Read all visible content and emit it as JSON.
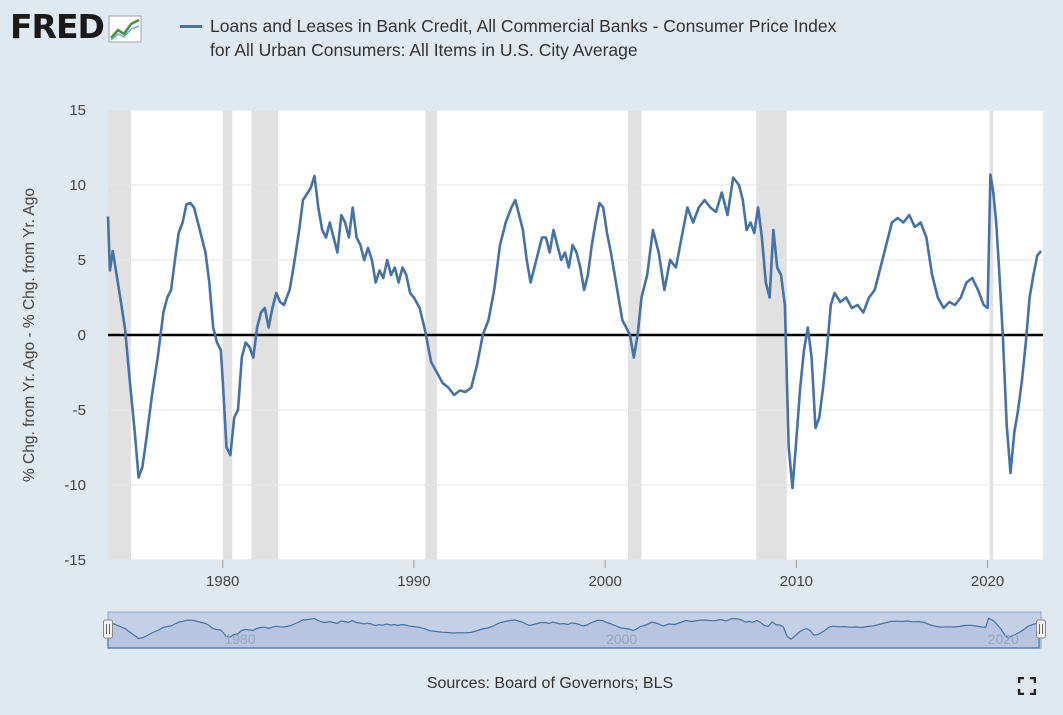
{
  "header": {
    "logo_text": "FRED",
    "legend_label_line1": "Loans and Leases in Bank Credit, All Commercial Banks - Consumer Price Index",
    "legend_label_line2": "for All Urban Consumers: All Items in U.S. City Average"
  },
  "footer": {
    "sources": "Sources: Board of Governors; BLS"
  },
  "icons": {
    "logo_chart": "chart-line-icon",
    "fullscreen": "fullscreen-icon",
    "range_handle": "drag-handle-icon"
  },
  "colors": {
    "background": "#e1e9f0",
    "series": "#4572a7",
    "recession": "#e1e1e1",
    "zero_line": "#000000",
    "navigator_fill": "#b7c5e0"
  },
  "chart_data": {
    "type": "line",
    "title": "",
    "xlabel": "",
    "ylabel": "% Chg. from Yr. Ago - % Chg. from Yr. Ago",
    "xlim": [
      1974.0,
      2022.9
    ],
    "ylim": [
      -15,
      15
    ],
    "y_ticks": [
      -15,
      -10,
      -5,
      0,
      5,
      10,
      15
    ],
    "x_ticks": [
      1980,
      1990,
      2000,
      2010,
      2020
    ],
    "grid": true,
    "zero_line": 0,
    "recessions": [
      [
        1974.0,
        1975.2
      ],
      [
        1980.0,
        1980.5
      ],
      [
        1981.5,
        1982.9
      ],
      [
        1990.6,
        1991.2
      ],
      [
        2001.2,
        2001.9
      ],
      [
        2007.9,
        2009.5
      ],
      [
        2020.1,
        2020.3
      ]
    ],
    "navigator_labels": [
      "1980",
      "2000",
      "2020"
    ],
    "series": [
      {
        "x": [
          1974.0,
          1974.1,
          1974.25,
          1974.5,
          1974.7,
          1974.9,
          1975.1,
          1975.4,
          1975.6,
          1975.8,
          1976.0,
          1976.3,
          1976.6,
          1976.9,
          1977.1,
          1977.3,
          1977.5,
          1977.7,
          1977.9,
          1978.1,
          1978.3,
          1978.5,
          1978.7,
          1978.9,
          1979.1,
          1979.3,
          1979.5,
          1979.7,
          1979.9,
          1980.0,
          1980.2,
          1980.4,
          1980.6,
          1980.8,
          1981.0,
          1981.2,
          1981.4,
          1981.6,
          1981.8,
          1982.0,
          1982.2,
          1982.4,
          1982.6,
          1982.8,
          1983.0,
          1983.2,
          1983.5,
          1983.7,
          1984.0,
          1984.2,
          1984.4,
          1984.6,
          1984.8,
          1985.0,
          1985.2,
          1985.4,
          1985.6,
          1985.8,
          1986.0,
          1986.2,
          1986.4,
          1986.6,
          1986.8,
          1987.0,
          1987.2,
          1987.4,
          1987.6,
          1987.8,
          1988.0,
          1988.2,
          1988.4,
          1988.6,
          1988.8,
          1989.0,
          1989.2,
          1989.4,
          1989.6,
          1989.8,
          1990.0,
          1990.3,
          1990.6,
          1990.9,
          1991.2,
          1991.5,
          1991.8,
          1992.1,
          1992.4,
          1992.7,
          1993.0,
          1993.3,
          1993.6,
          1993.9,
          1994.2,
          1994.5,
          1994.8,
          1995.1,
          1995.3,
          1995.5,
          1995.7,
          1995.9,
          1996.1,
          1996.3,
          1996.5,
          1996.7,
          1996.9,
          1997.1,
          1997.3,
          1997.5,
          1997.7,
          1997.9,
          1998.1,
          1998.3,
          1998.5,
          1998.7,
          1998.9,
          1999.1,
          1999.3,
          1999.5,
          1999.7,
          1999.9,
          2000.1,
          2000.3,
          2000.5,
          2000.7,
          2000.9,
          2001.1,
          2001.3,
          2001.5,
          2001.7,
          2001.9,
          2002.2,
          2002.5,
          2002.8,
          2003.1,
          2003.4,
          2003.7,
          2004.0,
          2004.3,
          2004.6,
          2004.9,
          2005.2,
          2005.5,
          2005.8,
          2006.1,
          2006.4,
          2006.7,
          2007.0,
          2007.2,
          2007.4,
          2007.6,
          2007.8,
          2008.0,
          2008.2,
          2008.4,
          2008.6,
          2008.8,
          2009.0,
          2009.2,
          2009.4,
          2009.6,
          2009.8,
          2010.0,
          2010.2,
          2010.4,
          2010.6,
          2010.8,
          2011.0,
          2011.2,
          2011.4,
          2011.6,
          2011.8,
          2012.0,
          2012.3,
          2012.6,
          2012.9,
          2013.2,
          2013.5,
          2013.8,
          2014.1,
          2014.4,
          2014.7,
          2015.0,
          2015.3,
          2015.6,
          2015.9,
          2016.2,
          2016.5,
          2016.8,
          2017.1,
          2017.4,
          2017.7,
          2018.0,
          2018.3,
          2018.6,
          2018.9,
          2019.2,
          2019.5,
          2019.8,
          2020.0,
          2020.15,
          2020.3,
          2020.45,
          2020.6,
          2020.8,
          2021.0,
          2021.2,
          2021.4,
          2021.6,
          2021.8,
          2022.0,
          2022.2,
          2022.4,
          2022.6,
          2022.8
        ],
        "values": [
          7.9,
          4.3,
          5.6,
          3.6,
          2.0,
          0.3,
          -2.5,
          -6.5,
          -9.5,
          -8.8,
          -7.0,
          -4.0,
          -1.5,
          1.5,
          2.5,
          3.0,
          5.0,
          6.8,
          7.5,
          8.7,
          8.8,
          8.5,
          7.5,
          6.5,
          5.5,
          3.5,
          0.5,
          -0.5,
          -1.0,
          -3.0,
          -7.5,
          -8.0,
          -5.5,
          -5.0,
          -1.5,
          -0.5,
          -0.8,
          -1.5,
          0.5,
          1.5,
          1.8,
          0.5,
          1.8,
          2.8,
          2.2,
          2.0,
          3.0,
          4.5,
          7.0,
          9.0,
          9.4,
          9.8,
          10.6,
          8.5,
          7.0,
          6.5,
          7.5,
          6.5,
          5.5,
          8.0,
          7.5,
          6.5,
          8.5,
          6.5,
          6.0,
          5.0,
          5.8,
          5.0,
          3.5,
          4.3,
          3.8,
          5.0,
          4.0,
          4.5,
          3.5,
          4.5,
          4.0,
          2.8,
          2.5,
          1.8,
          0.2,
          -1.8,
          -2.5,
          -3.2,
          -3.5,
          -4.0,
          -3.7,
          -3.8,
          -3.5,
          -2.0,
          0.0,
          1.0,
          3.0,
          6.0,
          7.5,
          8.5,
          9.0,
          8.0,
          7.0,
          5.0,
          3.5,
          4.5,
          5.5,
          6.5,
          6.5,
          5.5,
          7.0,
          6.0,
          5.0,
          5.5,
          4.5,
          6.0,
          5.5,
          4.5,
          3.0,
          4.0,
          6.0,
          7.5,
          8.8,
          8.5,
          6.8,
          5.5,
          4.0,
          2.5,
          1.0,
          0.5,
          0.0,
          -1.5,
          0.0,
          2.5,
          4.0,
          7.0,
          5.5,
          3.0,
          5.0,
          4.5,
          6.5,
          8.5,
          7.5,
          8.5,
          9.0,
          8.5,
          8.2,
          9.5,
          8.0,
          10.5,
          10.0,
          9.0,
          7.0,
          7.5,
          6.8,
          8.5,
          6.5,
          3.5,
          2.5,
          7.0,
          4.5,
          4.0,
          2.0,
          -7.5,
          -10.2,
          -7.0,
          -3.5,
          -1.0,
          0.5,
          -1.5,
          -6.2,
          -5.5,
          -3.5,
          -1.0,
          2.0,
          2.8,
          2.2,
          2.5,
          1.8,
          2.0,
          1.5,
          2.5,
          3.0,
          4.5,
          6.0,
          7.5,
          7.8,
          7.5,
          8.0,
          7.2,
          7.5,
          6.5,
          4.0,
          2.5,
          1.8,
          2.2,
          2.0,
          2.5,
          3.5,
          3.8,
          3.0,
          2.0,
          1.8,
          10.7,
          9.5,
          7.5,
          4.5,
          0.0,
          -6.0,
          -9.2,
          -6.5,
          -5.0,
          -3.0,
          -0.5,
          2.5,
          4.0,
          5.3,
          5.6
        ]
      }
    ]
  }
}
